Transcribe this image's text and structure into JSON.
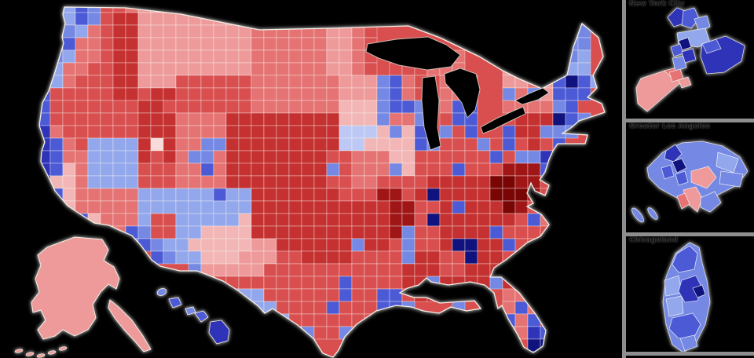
{
  "insets": [
    {
      "label": "New York City"
    },
    {
      "label": "Greater Los Angeles"
    },
    {
      "label": "Chicagoland"
    }
  ],
  "colors": {
    "background": "#000000",
    "divider": "#8e8e8e",
    "district_border": "#f4efe6",
    "outline_shadow": "#8f8f8f",
    "water": "#000000"
  },
  "map": {
    "type": "choropleth",
    "geography": "United States congressional districts, Republican red / Democratic blue shading",
    "cell_size": 16,
    "palette": {
      "1": "#f2b6b6",
      "2": "#ee9a9a",
      "3": "#e57373",
      "4": "#d94f4f",
      "5": "#c53030",
      "6": "#a01616",
      "7": "#7a0505",
      "8": "#f8dcdc",
      "p": "#bdc9f4",
      "q": "#93a7ec",
      "s": "#7488e4",
      "t": "#4c5ad6",
      "u": "#2e33b8",
      "v": "#10127e"
    },
    "grid": [
      ".....qts44322222..................................",
      ".....qts455222222222.........................s....",
      ".....sq34552222222223333332234..............sss...",
      "....st334552222222223333332234..............sss...",
      "....sq334552222222223333332234....333...2233ssq...",
      "...sq3344552222222223333332234.444333...2232sqq...",
      "...sq3444552224444443333333222st34.333..2232tvtq..",
      "...t44444554554444443333333222st34.333..s3s2ttt...",
      "...t44444445544444443333333111stts.3tt..3333st....",
      "...t44444445553333555555555111s33s.4tt...555vts...",
      "...u34444445553333555555555ppp1s1t.s4t..t55sss....",
      "...ut34qqqq58533ss555555555pp1111ts444s4t454t.....",
      "...ut33qqqq5453ss3555555554433311444444t4ssuvs....",
      "...ut13qqqq44433t355555555s4333s1444t444666t3s....",
      "...u113qqqq4443333555555554433444455555776643.....",
      "....t133333qqqqqqtqq55555554446645v555577764ts....",
      "....t133333qqqqqqqqq5555555555566445t5557644t31...",
      "......t1333q44qqqqq155555555555664v5555554t3331...",
      ".......t33ts44qq1111555555555556s445555t444443....",
      ".........tstsqq1111122555555s554s445vv55t444s.....",
      "............tsqq1112224455554444s5544v5544s.......",
      "...............s2222244444444444555445555533......",
      "................44444444444t444455s5555s53s.......",
      ".................qqqq444444t44tt4555tvs.333.......",
      "..................qqqq4444t444tts...s...3t3.......",
      "...................qqqq4444444..........t3t.......",
      "....................qqqqs44s............33ut......",
      ".....................ssss................4vv......",
      "......................ss..................u......."
    ]
  }
}
